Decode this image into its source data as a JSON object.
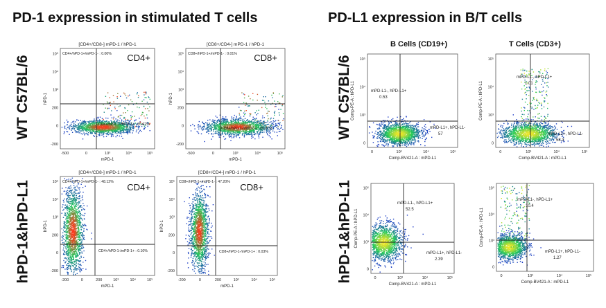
{
  "titles": {
    "left": "PD-1 expression in stimulated T cells",
    "right": "PD-L1 expression in B/T cells"
  },
  "row_labels": {
    "wt": "WT C57BL/6",
    "humanized": "hPD-1&hPD-L1"
  },
  "column_labels": {
    "b_cells": "B Cells (CD19+)",
    "t_cells": "T Cells (CD3+)"
  },
  "colors": {
    "density_low": "#1e3cc8",
    "density_mid": "#22c85a",
    "density_high_left": "#ff3a1e",
    "density_high_right": "#f0e628"
  },
  "chart_data": [
    {
      "type": "scatter",
      "id": "pd1_wt_cd4",
      "header": "[CD4+/CD8-] mPD-1 / hPD-1",
      "title": "CD4+",
      "xlabel": "mPD-1",
      "ylabel": "hPD-1",
      "xticks": [
        "-500",
        "0",
        "10³",
        "10⁴",
        "10⁵"
      ],
      "yticks": [
        "-200",
        "0",
        "200",
        "10³",
        "10⁴",
        "10⁵"
      ],
      "gates": [
        {
          "label": "CD4+/hPD-1+/mPD-1- : 0.00%",
          "value": 0.0
        },
        {
          "label": "CD4+/hPD-1-/mPD-1+ : 85.62%",
          "value": 85.62
        }
      ]
    },
    {
      "type": "scatter",
      "id": "pd1_wt_cd8",
      "header": "[CD8+/CD4-] mPD-1 / hPD-1",
      "title": "CD8+",
      "xlabel": "mPD-1",
      "ylabel": "hPD-1",
      "xticks": [
        "-500",
        "0",
        "10³",
        "10⁴",
        "10⁵"
      ],
      "yticks": [
        "-200",
        "0",
        "200",
        "10³",
        "10⁴",
        "10⁵"
      ],
      "gates": [
        {
          "label": "CD8+/hPD-1+/mPD-1- : 0.01%",
          "value": 0.01
        },
        {
          "label": "CD8+/hPD-1-/mPD-1+ : 89.87%",
          "value": 89.87
        }
      ]
    },
    {
      "type": "scatter",
      "id": "pd1_hu_cd4",
      "header": "[CD4+/CD8-] mPD-1 / hPD-1",
      "title": "CD4+",
      "xlabel": "mPD-1",
      "ylabel": "hPD-1",
      "xticks": [
        "-200",
        "0",
        "200",
        "10³",
        "10⁴",
        "10⁵"
      ],
      "yticks": [
        "-200",
        "0",
        "200",
        "10³",
        "10⁴",
        "10⁵"
      ],
      "gates": [
        {
          "label": "CD4+/hPD-1+/mPD-1- : 48.12%",
          "value": 48.12
        },
        {
          "label": "CD4+/hPD-1-/mPD-1+ : 0.10%",
          "value": 0.1
        }
      ]
    },
    {
      "type": "scatter",
      "id": "pd1_hu_cd8",
      "header": "[CD8+/CD4-] mPD-1 / hPD-1",
      "title": "CD8+",
      "xlabel": "mPD-1",
      "ylabel": "hPD-1",
      "xticks": [
        "-200",
        "0",
        "200",
        "10³",
        "10⁴",
        "10⁵"
      ],
      "yticks": [
        "-200",
        "0",
        "200",
        "10³",
        "10⁴",
        "10⁵"
      ],
      "gates": [
        {
          "label": "CD8+/hPD-1+/mPD-1- : 47.20%",
          "value": 47.2
        },
        {
          "label": "CD8+/hPD-1-/mPD-1+ : 0.03%",
          "value": 0.03
        }
      ]
    },
    {
      "type": "scatter",
      "id": "pdl1_wt_b",
      "header": "",
      "title": "",
      "xlabel": "Comp-BV421-A : mPD-L1",
      "ylabel": "Comp-PE-A : hPD-L1",
      "xticks": [
        "0",
        "10³",
        "10⁴",
        "10⁵"
      ],
      "yticks": [
        "0",
        "10³",
        "10⁴",
        "10⁵"
      ],
      "gates": [
        {
          "label": "mPD-L1-, hPD-L1+",
          "value": 0.53
        },
        {
          "label": "mPD-L1+, hPD-L1-",
          "value": 57.0
        }
      ]
    },
    {
      "type": "scatter",
      "id": "pdl1_wt_t",
      "header": "",
      "title": "",
      "xlabel": "Comp-BV421-A : mPD-L1",
      "ylabel": "Comp-PE-A : hPD-L1",
      "xticks": [
        "0",
        "10³",
        "10⁴",
        "10⁵"
      ],
      "yticks": [
        "0",
        "10³",
        "10⁴",
        "10⁵"
      ],
      "gates": [
        {
          "label": "mPD-L1-, hPD-L1+",
          "value": 1.01
        },
        {
          "label": "mPD-L1+, hPD-L1-",
          "value": 58.3
        }
      ]
    },
    {
      "type": "scatter",
      "id": "pdl1_hu_b",
      "header": "",
      "title": "",
      "xlabel": "Comp-BV421-A : mPD-L1",
      "ylabel": "Comp-PE-A : hPD-L1",
      "xticks": [
        "0",
        "10³",
        "10⁴",
        "10⁵"
      ],
      "yticks": [
        "0",
        "10³",
        "10⁴",
        "10⁵"
      ],
      "gates": [
        {
          "label": "mPD-L1-, hPD-L1+",
          "value": 52.5
        },
        {
          "label": "mPD-L1+, hPD-L1-",
          "value": 2.39
        }
      ]
    },
    {
      "type": "scatter",
      "id": "pdl1_hu_t",
      "header": "",
      "title": "",
      "xlabel": "Comp-BV421-A : mPD-L1",
      "ylabel": "Comp-PE-A : hPD-L1",
      "xticks": [
        "0",
        "10³",
        "10⁴",
        "10⁵"
      ],
      "yticks": [
        "0",
        "10³",
        "10⁴",
        "10⁵"
      ],
      "gates": [
        {
          "label": "mPD-L1-, hPD-L1+",
          "value": 10.4
        },
        {
          "label": "mPD-L1+, hPD-L1-",
          "value": 1.27
        }
      ]
    }
  ]
}
